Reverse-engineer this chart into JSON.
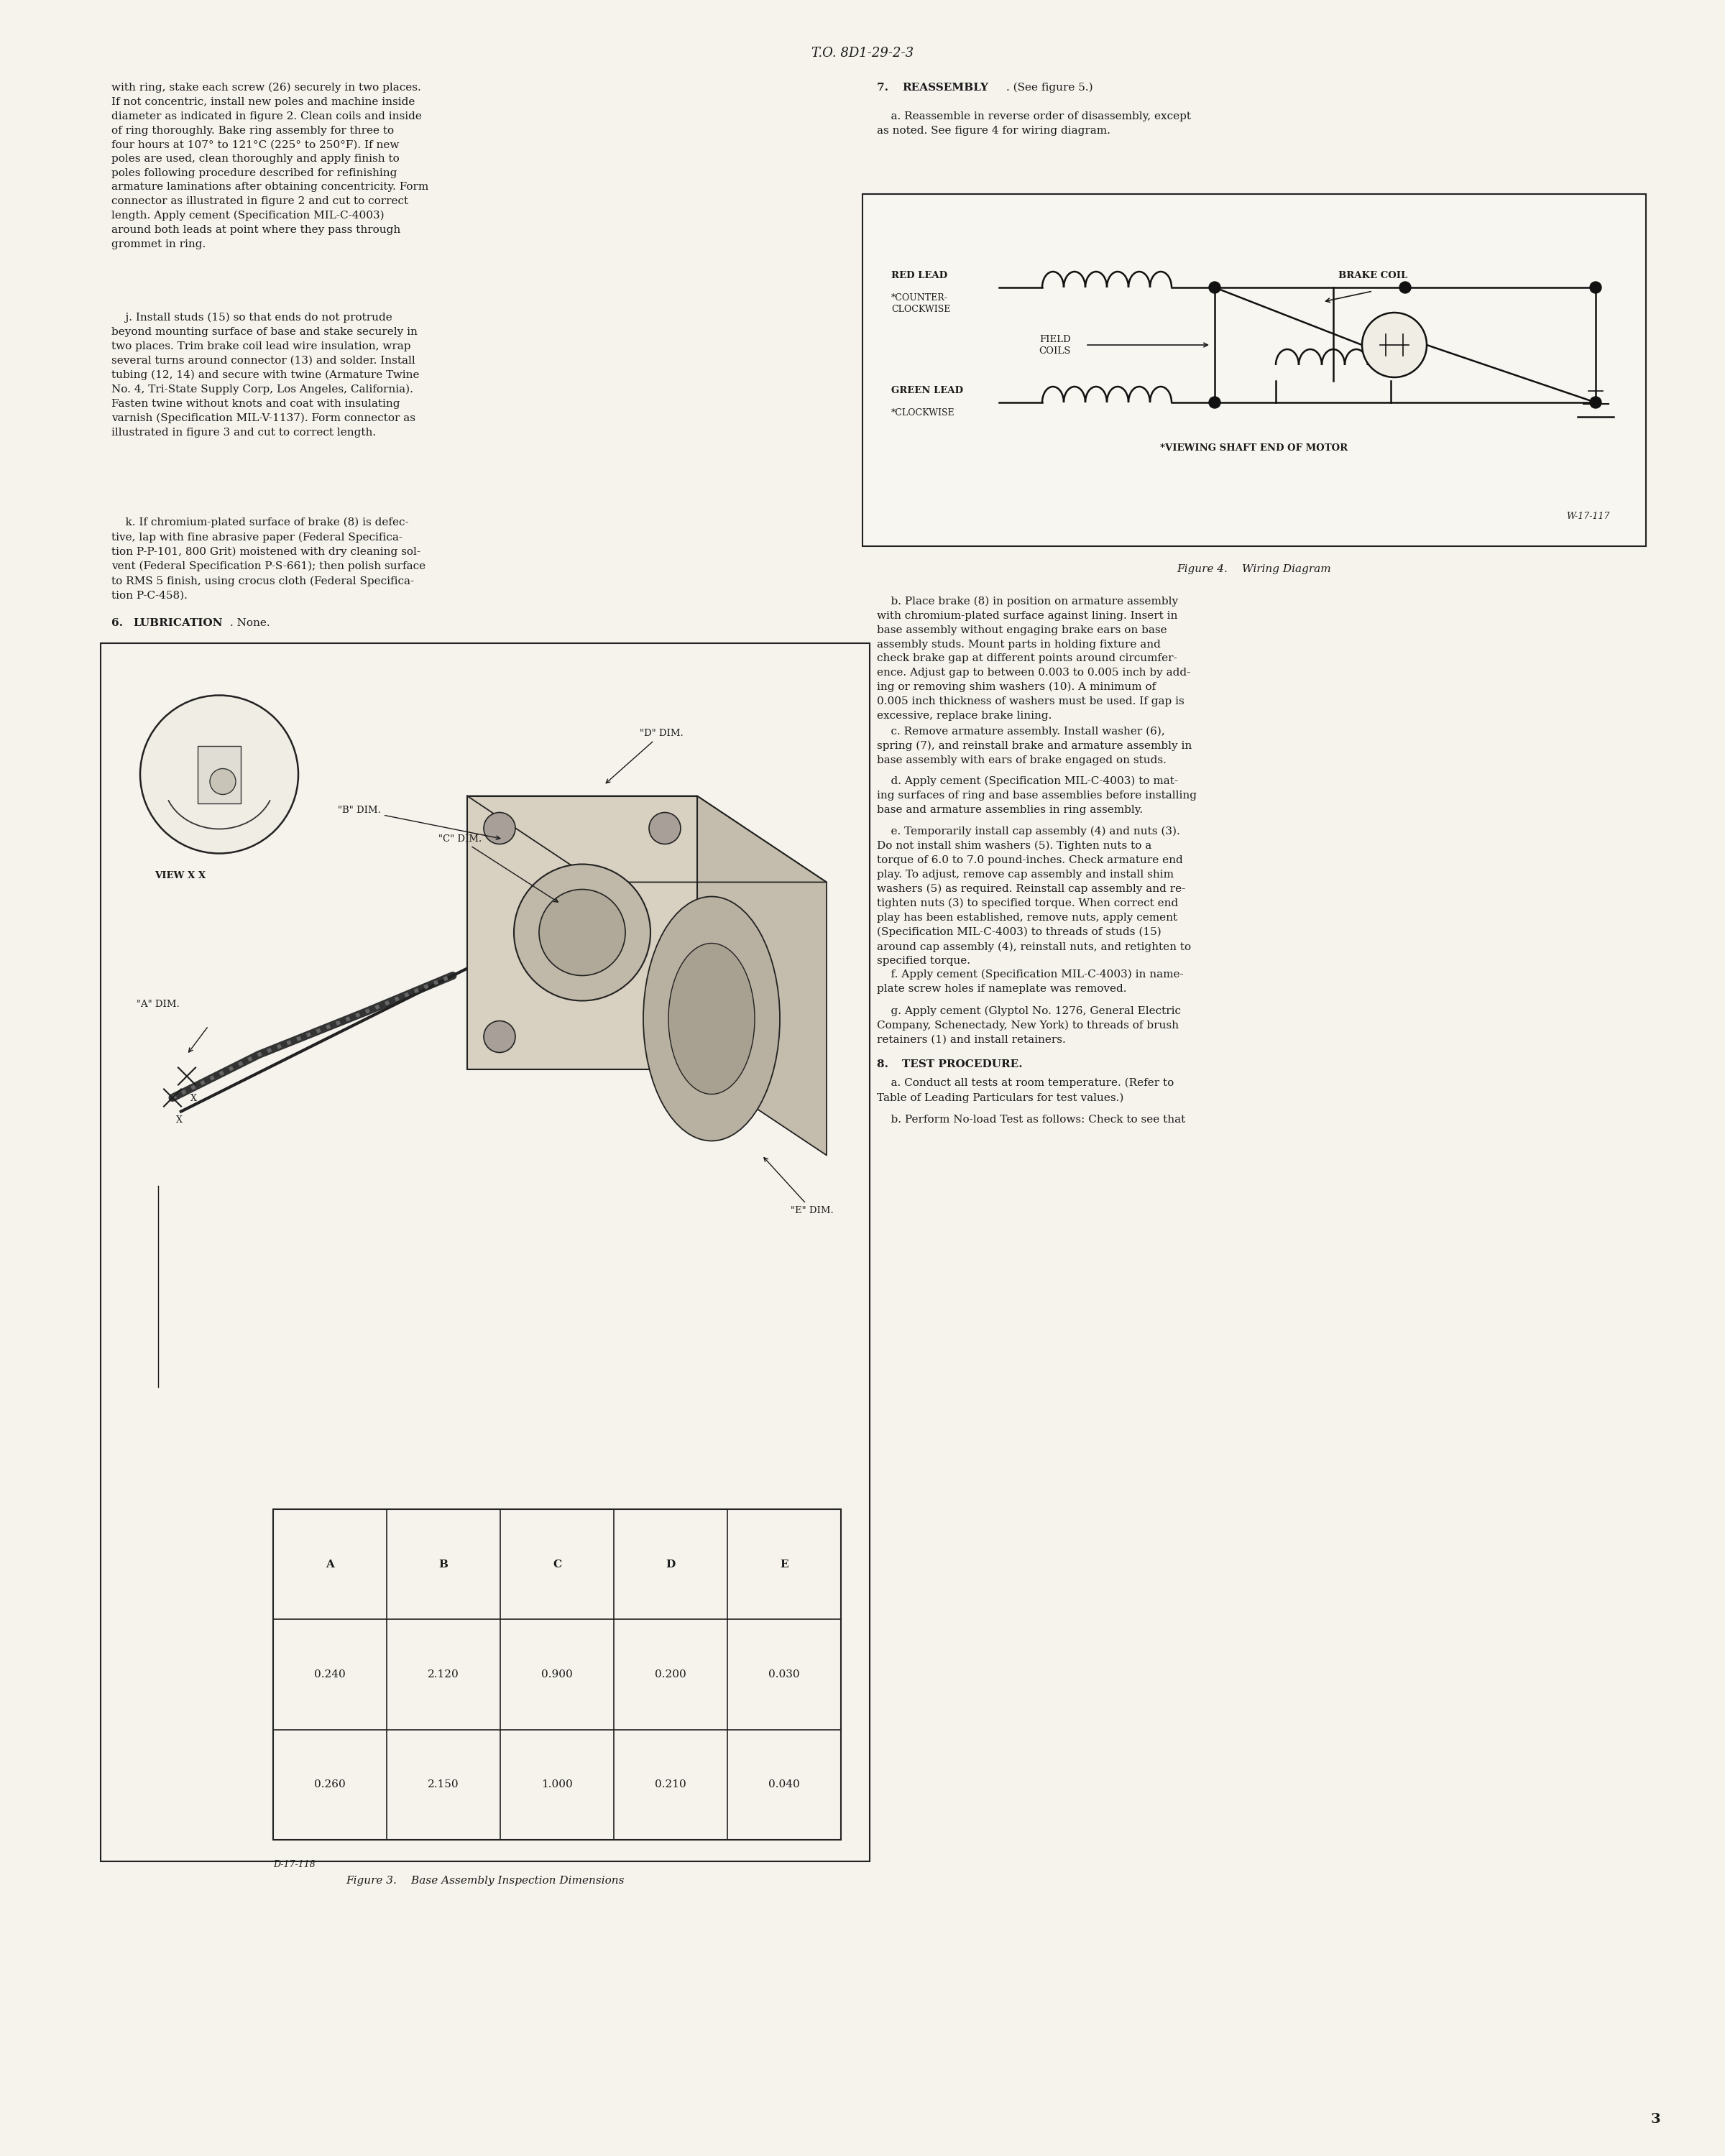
{
  "page_bg": "#f5f3ec",
  "text_color": "#1a1a1a",
  "header_text": "T.O. 8D1-29-2-3",
  "page_number": "3",
  "body_font_size": 10.5,
  "left_col_paragraphs": [
    "with ring, stake each screw (26) securely in two places.\nIf not concentric, install new poles and machine inside\ndiameter as indicated in figure 2. Clean coils and inside\nof ring thoroughly. Bake ring assembly for three to\nfour hours at 107° to 121°C (225° to 250°F). If new\npoles are used, clean thoroughly and apply finish to\npoles following procedure described for refinishing\narmature laminations after obtaining concentricity. Form\nconnector as illustrated in figure 2 and cut to correct\nlength. Apply cement (Specification MIL-C-4003)\naround both leads at point where they pass through\ngrommet in ring.",
    "    j. Install studs (15) so that ends do not protrude\nbeyond mounting surface of base and stake securely in\ntwo places. Trim brake coil lead wire insulation, wrap\nseveral turns around connector (13) and solder. Install\ntubing (12, 14) and secure with twine (Armature Twine\nNo. 4, Tri-State Supply Corp, Los Angeles, California).\nFasten twine without knots and coat with insulating\nvarnish (Specification MIL-V-1137). Form connector as\nillustrated in figure 3 and cut to correct length.",
    "    k. If chromium-plated surface of brake (8) is defec-\ntive, lap with fine abrasive paper (Federal Specifica-\ntion P-P-101, 800 Grit) moistened with dry cleaning sol-\nvent (Federal Specification P-S-661); then polish surface\nto RMS 5 finish, using crocus cloth (Federal Specifica-\ntion P-C-458).",
    "6.  LUBRICATION. None."
  ],
  "right_col_paras_top": [
    "7.  REASSEMBLY. (See figure 5.)",
    "    a. Reassemble in reverse order of disassembly, except\nas noted. See figure 4 for wiring diagram."
  ],
  "fig4_caption": "Figure 4.  Wiring Diagram",
  "right_col_paras_mid": [
    "    b. Place brake (8) in position on armature assembly\nwith chromium-plated surface against lining. Insert in\nbase assembly without engaging brake ears on base\nassembly studs. Mount parts in holding fixture and\ncheck brake gap at different points around circumfer-\nence. Adjust gap to between 0.003 to 0.005 inch by add-\ning or removing shim washers (10). A minimum of\n0.005 inch thickness of washers must be used. If gap is\nexcessive, replace brake lining.",
    "    c. Remove armature assembly. Install washer (6),\nspring (7), and reinstall brake and armature assembly in\nbase assembly with ears of brake engaged on studs.",
    "    d. Apply cement (Specification MIL-C-4003) to mat-\ning surfaces of ring and base assemblies before installing\nbase and armature assemblies in ring assembly.",
    "    e. Temporarily install cap assembly (4) and nuts (3).\nDo not install shim washers (5). Tighten nuts to a\ntorque of 6.0 to 7.0 pound-inches. Check armature end\nplay. To adjust, remove cap assembly and install shim\nwashers (5) as required. Reinstall cap assembly and re-\ntighten nuts (3) to specified torque. When correct end\nplay has been established, remove nuts, apply cement\n(Specification MIL-C-4003) to threads of studs (15)\naround cap assembly (4), reinstall nuts, and retighten to\nspecified torque.",
    "    f. Apply cement (Specification MIL-C-4003) in name-\nplate screw holes if nameplate was removed.",
    "    g. Apply cement (Glyptol No. 1276, General Electric\nCompany, Schenectady, New York) to threads of brush\nretainers (1) and install retainers."
  ],
  "sec8_paras": [
    "8.  TEST PROCEDURE.",
    "    a. Conduct all tests at room temperature. (Refer to\nTable of Leading Particulars for test values.)",
    "    b. Perform No-load Test as follows: Check to see that"
  ],
  "fig3_caption": "Figure 3.  Base Assembly Inspection Dimensions",
  "fig3_table_headers": [
    "A",
    "B",
    "C",
    "D",
    "E"
  ],
  "fig3_table_row1": [
    "0.240",
    "2.120",
    "0.900",
    "0.200",
    "0.030"
  ],
  "fig3_table_row2": [
    "0.260",
    "2.150",
    "1.000",
    "0.210",
    "0.040"
  ],
  "fig3_table_ref": "D-17-118"
}
